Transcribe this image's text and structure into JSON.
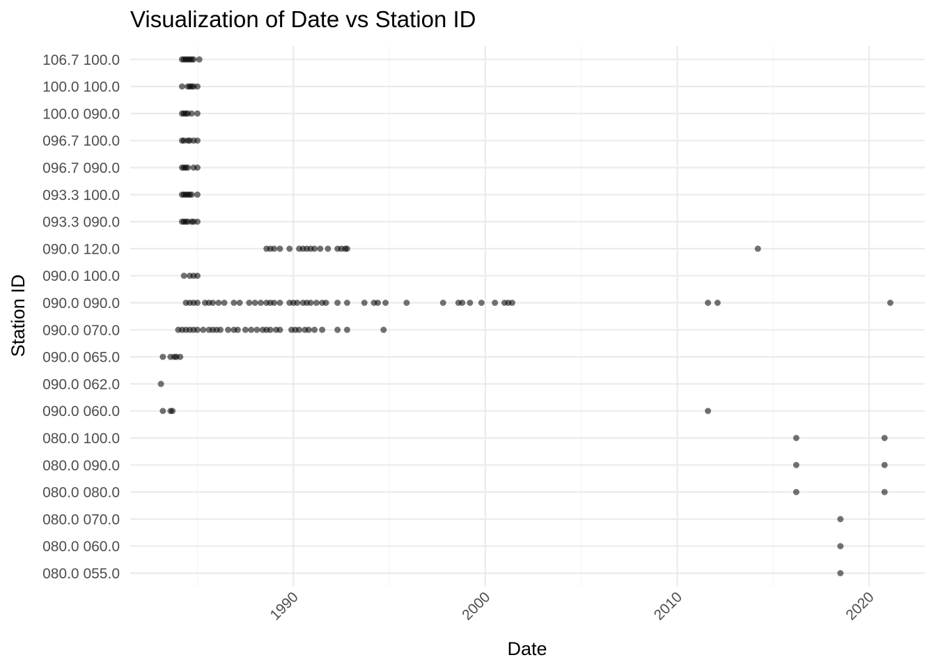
{
  "chart_data": {
    "type": "scatter",
    "title": "Visualization of Date vs Station ID",
    "xlabel": "Date",
    "ylabel": "Station ID",
    "xlim": [
      1981.5,
      2022.9
    ],
    "x_ticks": [
      1990,
      2000,
      2010,
      2020
    ],
    "x_tick_labels": [
      "1990",
      "2000",
      "2010",
      "2020"
    ],
    "x_minor_ticks": [
      1985,
      1995,
      2005,
      2015
    ],
    "categories": [
      "080.0 055.0",
      "080.0 060.0",
      "080.0 070.0",
      "080.0 080.0",
      "080.0 090.0",
      "080.0 100.0",
      "090.0 060.0",
      "090.0 062.0",
      "090.0 065.0",
      "090.0 070.0",
      "090.0 090.0",
      "090.0 100.0",
      "090.0 120.0",
      "093.3 090.0",
      "093.3 100.0",
      "096.7 090.0",
      "096.7 100.0",
      "100.0 090.0",
      "100.0 100.0",
      "106.7 100.0"
    ],
    "grid": true,
    "marker": {
      "color": "#000000",
      "opacity": 0.55,
      "size": 4.5
    },
    "series": [
      {
        "station": "106.7 100.0",
        "dates": [
          1984.2,
          1984.3,
          1984.4,
          1984.5,
          1984.6,
          1984.7,
          1984.8,
          1985.1
        ]
      },
      {
        "station": "100.0 100.0",
        "dates": [
          1984.2,
          1984.5,
          1984.6,
          1984.7,
          1984.8,
          1985.0
        ]
      },
      {
        "station": "100.0 090.0",
        "dates": [
          1984.2,
          1984.3,
          1984.4,
          1984.5,
          1984.7,
          1985.0
        ]
      },
      {
        "station": "096.7 100.0",
        "dates": [
          1984.2,
          1984.3,
          1984.5,
          1984.6,
          1984.8,
          1985.0
        ]
      },
      {
        "station": "096.7 090.0",
        "dates": [
          1984.2,
          1984.3,
          1984.4,
          1984.5,
          1984.8,
          1985.0
        ]
      },
      {
        "station": "093.3 100.0",
        "dates": [
          1984.2,
          1984.3,
          1984.4,
          1984.5,
          1984.6,
          1984.7,
          1985.0
        ]
      },
      {
        "station": "093.3 090.0",
        "dates": [
          1984.2,
          1984.3,
          1984.4,
          1984.5,
          1984.7,
          1984.8,
          1985.0
        ]
      },
      {
        "station": "090.0 120.0",
        "dates": [
          1988.6,
          1988.8,
          1989.0,
          1989.3,
          1989.8,
          1990.3,
          1990.5,
          1990.7,
          1990.9,
          1991.1,
          1991.4,
          1991.8,
          1992.3,
          1992.5,
          1992.7,
          1992.8,
          2014.2
        ]
      },
      {
        "station": "090.0 100.0",
        "dates": [
          1984.3,
          1984.6,
          1984.8,
          1985.0
        ]
      },
      {
        "station": "090.0 090.0",
        "dates": [
          1984.4,
          1984.6,
          1984.8,
          1985.0,
          1985.4,
          1985.6,
          1985.8,
          1986.1,
          1986.4,
          1986.9,
          1987.2,
          1987.7,
          1988.0,
          1988.3,
          1988.6,
          1988.8,
          1989.0,
          1989.3,
          1989.8,
          1990.0,
          1990.2,
          1990.5,
          1990.7,
          1990.9,
          1991.2,
          1991.5,
          1991.7,
          1992.3,
          1992.8,
          1993.7,
          1994.2,
          1994.4,
          1994.8,
          1995.9,
          1997.8,
          1998.6,
          1998.8,
          1999.2,
          1999.8,
          2000.5,
          2001.0,
          2001.2,
          2001.4,
          2011.6,
          2012.1,
          2021.1
        ]
      },
      {
        "station": "090.0 070.0",
        "dates": [
          1984.0,
          1984.2,
          1984.4,
          1984.6,
          1984.8,
          1985.0,
          1985.3,
          1985.6,
          1985.8,
          1986.0,
          1986.2,
          1986.6,
          1986.9,
          1987.1,
          1987.5,
          1987.8,
          1988.1,
          1988.4,
          1988.6,
          1988.8,
          1989.1,
          1989.3,
          1989.9,
          1990.1,
          1990.3,
          1990.6,
          1990.8,
          1991.1,
          1991.5,
          1992.3,
          1992.8,
          1994.7
        ]
      },
      {
        "station": "090.0 065.0",
        "dates": [
          1983.2,
          1983.6,
          1983.8,
          1983.9,
          1984.1
        ]
      },
      {
        "station": "090.0 062.0",
        "dates": [
          1983.1
        ]
      },
      {
        "station": "090.0 060.0",
        "dates": [
          1983.2,
          1983.6,
          1983.7,
          2011.6
        ]
      },
      {
        "station": "080.0 100.0",
        "dates": [
          2016.2,
          2020.8
        ]
      },
      {
        "station": "080.0 090.0",
        "dates": [
          2016.2,
          2020.8
        ]
      },
      {
        "station": "080.0 080.0",
        "dates": [
          2016.2,
          2020.8
        ]
      },
      {
        "station": "080.0 070.0",
        "dates": [
          2018.5
        ]
      },
      {
        "station": "080.0 060.0",
        "dates": [
          2018.5
        ]
      },
      {
        "station": "080.0 055.0",
        "dates": [
          2018.5
        ]
      }
    ]
  }
}
